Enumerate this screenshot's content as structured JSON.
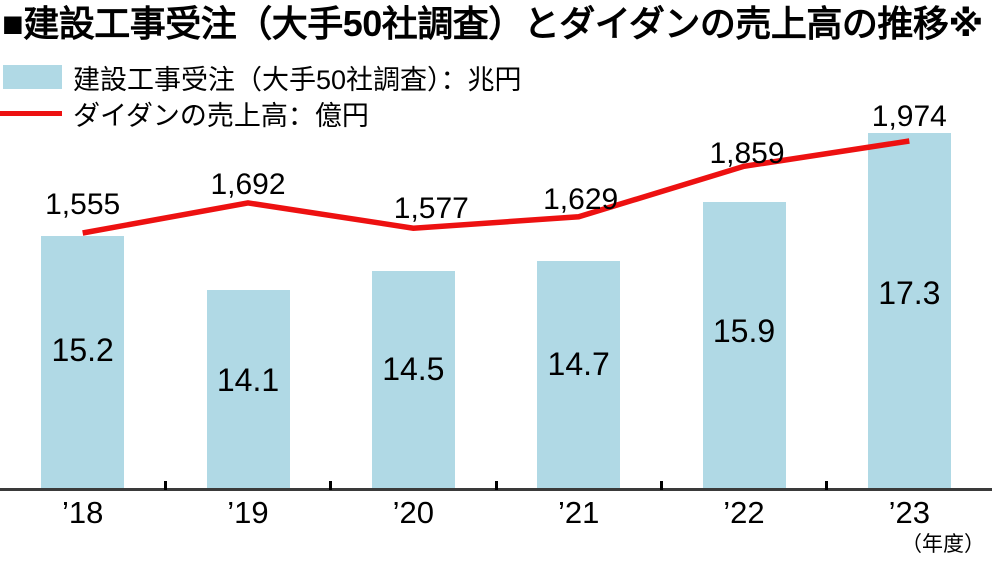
{
  "title": "■建設工事受注（大手50社調査）とダイダンの売上高の推移※",
  "legend": {
    "items": [
      {
        "label": "建設工事受注（大手50社調査）：兆円"
      },
      {
        "label": "ダイダンの売上高：億円"
      }
    ]
  },
  "x_axis_unit": "（年度）",
  "colors": {
    "bar": "#b0d9e5",
    "line": "#ed1111",
    "axis": "#3a3a3a",
    "text": "#000000"
  },
  "chart_data": {
    "type": "bar+line",
    "categories": [
      "’18",
      "’19",
      "’20",
      "’21",
      "’22",
      "’23"
    ],
    "x_unit": "年度",
    "series": [
      {
        "name": "建設工事受注（大手50社調査）",
        "unit": "兆円",
        "type": "bar",
        "color": "#b0d9e5",
        "values": [
          15.2,
          14.1,
          14.5,
          14.7,
          15.9,
          17.3
        ],
        "labels": [
          "15.2",
          "14.1",
          "14.5",
          "14.7",
          "15.9",
          "17.3"
        ]
      },
      {
        "name": "ダイダンの売上高",
        "unit": "億円",
        "type": "line",
        "color": "#ed1111",
        "values": [
          1555,
          1692,
          1577,
          1629,
          1859,
          1974
        ],
        "labels": [
          "1,555",
          "1,692",
          "1,577",
          "1,629",
          "1,859",
          "1,974"
        ]
      }
    ],
    "bar_axis_visible_range": [
      10,
      18
    ],
    "grid": false,
    "legend_position": "top-left",
    "value_labels_shown": true
  }
}
